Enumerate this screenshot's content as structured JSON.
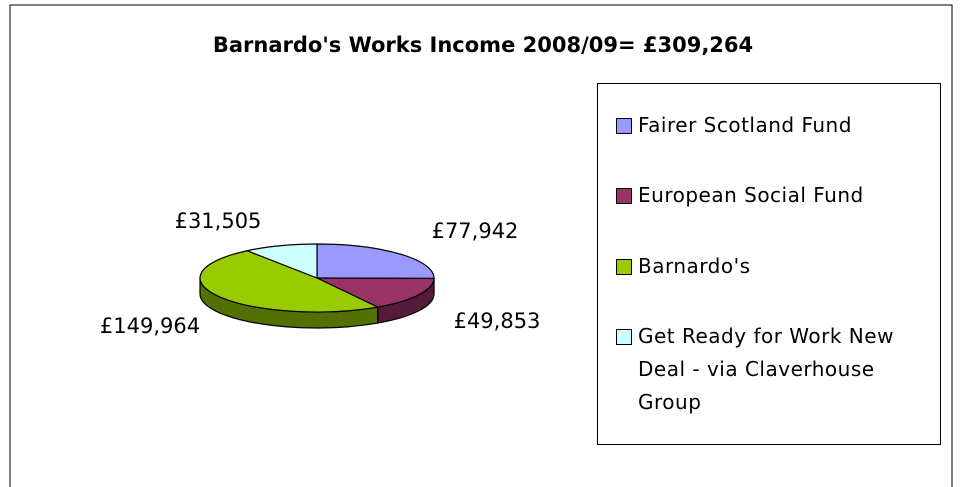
{
  "chart_data": {
    "type": "pie",
    "title": "Barnardo's Works Income 2008/09= £309,264",
    "categories": [
      "Fairer Scotland Fund",
      "European Social Fund",
      "Barnardo's",
      "Get Ready for Work New Deal - via Claverhouse Group"
    ],
    "values": [
      77942,
      49853,
      149964,
      31505
    ],
    "value_labels": [
      "£77,942",
      "£49,853",
      "£149,964",
      "£31,505"
    ],
    "colors": [
      "#9999ff",
      "#993366",
      "#99cc00",
      "#ccffff"
    ],
    "legend": "right"
  }
}
